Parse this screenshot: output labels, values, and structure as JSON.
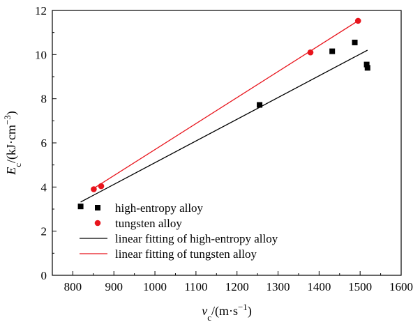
{
  "chart_data": {
    "type": "scatter",
    "xlabel": {
      "main": "v",
      "sub": "c",
      "rest": "/(m·s",
      "sup": "−1",
      "close": ")"
    },
    "ylabel": {
      "main": "E",
      "sub": "c",
      "rest": "/(kJ·cm",
      "sup": "−3",
      "close": ")"
    },
    "xlim": [
      750,
      1600
    ],
    "ylim": [
      0,
      12
    ],
    "xticks": [
      800,
      900,
      1000,
      1100,
      1200,
      1300,
      1400,
      1500,
      1600
    ],
    "yticks": [
      0,
      2,
      4,
      6,
      8,
      10,
      12
    ],
    "grid": false,
    "legend_position": "bottom-right",
    "series": [
      {
        "name": "high-entropy alloy",
        "kind": "scatter",
        "marker": "square",
        "color": "#000000",
        "points": [
          [
            819,
            3.12
          ],
          [
            1255,
            7.72
          ],
          [
            1432,
            10.15
          ],
          [
            1487,
            10.55
          ],
          [
            1516,
            9.55
          ],
          [
            1518,
            9.4
          ]
        ]
      },
      {
        "name": "tungsten alloy",
        "kind": "scatter",
        "marker": "circle",
        "color": "#e8141c",
        "points": [
          [
            851,
            3.9
          ],
          [
            869,
            4.04
          ],
          [
            1379,
            10.1
          ],
          [
            1495,
            11.53
          ]
        ]
      },
      {
        "name": "linear fitting of high-entropy alloy",
        "kind": "line",
        "color": "#000000",
        "points": [
          [
            819,
            3.32
          ],
          [
            1518,
            10.2
          ]
        ]
      },
      {
        "name": "linear fitting of tungsten alloy",
        "kind": "line",
        "color": "#e8141c",
        "points": [
          [
            851,
            3.94
          ],
          [
            1495,
            11.53
          ]
        ]
      }
    ]
  }
}
